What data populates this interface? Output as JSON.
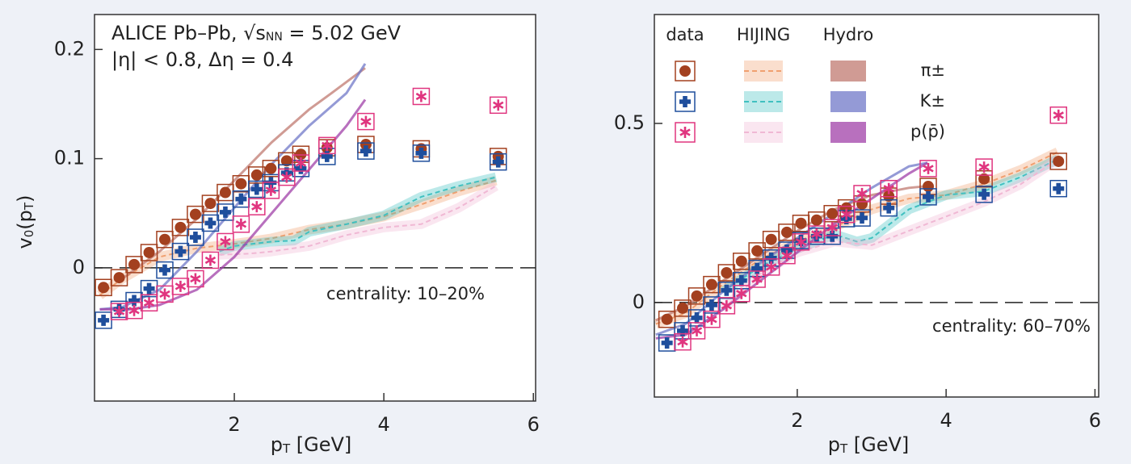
{
  "chart_data": [
    {
      "type": "scatter",
      "energy_label": [
        "ALICE Pb–Pb, √s",
        "NN",
        " = 5.02 GeV"
      ],
      "cuts_label": "|η| < 0.8, Δη = 0.4",
      "annotation": "centrality: 10–20%",
      "ylabel": [
        "v",
        "0",
        "(p",
        "T",
        ")"
      ],
      "xlabel": [
        "p",
        "T",
        " [GeV]"
      ],
      "xlim": [
        0.13,
        6.03
      ],
      "ylim": [
        -0.122,
        0.232
      ],
      "xticks": [
        2,
        4,
        6
      ],
      "yticks": [
        0,
        0.1,
        0.2
      ],
      "hline": 0,
      "series": [
        {
          "color": "#a3401f",
          "marker": "circle",
          "x": [
            0.25,
            0.46,
            0.66,
            0.86,
            1.07,
            1.28,
            1.48,
            1.68,
            1.88,
            2.09,
            2.3,
            2.49,
            2.7,
            2.89,
            3.24,
            3.76,
            4.5,
            5.53
          ],
          "values": [
            -0.018,
            -0.009,
            0.003,
            0.014,
            0.026,
            0.037,
            0.049,
            0.059,
            0.069,
            0.077,
            0.085,
            0.091,
            0.098,
            0.104,
            0.11,
            0.113,
            0.109,
            0.102
          ],
          "hijing": {
            "color": "#f0a070",
            "x": [
              0.2,
              0.5,
              1,
              1.5,
              2,
              2.5,
              3,
              3.5,
              4,
              4.5,
              5,
              5.5
            ],
            "values": [
              -0.025,
              -0.01,
              0.01,
              0.018,
              0.022,
              0.027,
              0.035,
              0.04,
              0.047,
              0.058,
              0.07,
              0.08
            ]
          },
          "hydro": {
            "color": "#c07a70",
            "x": [
              0.5,
              1,
              1.5,
              2,
              2.5,
              3,
              3.3,
              3.75
            ],
            "values": [
              -0.01,
              0.015,
              0.045,
              0.08,
              0.115,
              0.145,
              0.16,
              0.183
            ]
          }
        },
        {
          "color": "#1f4e9c",
          "marker": "plus",
          "x": [
            0.25,
            0.46,
            0.66,
            0.86,
            1.07,
            1.28,
            1.48,
            1.68,
            1.88,
            2.09,
            2.3,
            2.49,
            2.7,
            2.89,
            3.24,
            3.76,
            4.5,
            5.53
          ],
          "values": [
            -0.048,
            -0.038,
            -0.03,
            -0.019,
            -0.002,
            0.015,
            0.028,
            0.041,
            0.051,
            0.063,
            0.072,
            0.078,
            0.087,
            0.091,
            0.102,
            0.107,
            0.105,
            0.097
          ],
          "hijing": {
            "color": "#40c0c0",
            "x": [
              1.8,
              2,
              2.5,
              2.8,
              3,
              3.5,
              4,
              4.5,
              5,
              5.5
            ],
            "values": [
              0.015,
              0.02,
              0.024,
              0.025,
              0.033,
              0.04,
              0.048,
              0.065,
              0.075,
              0.083
            ]
          },
          "hydro": {
            "color": "#7078c8",
            "x": [
              0.2,
              0.5,
              1,
              1.5,
              2,
              2.5,
              3,
              3.5,
              3.75
            ],
            "values": [
              -0.038,
              -0.036,
              -0.02,
              0.015,
              0.055,
              0.095,
              0.13,
              0.16,
              0.187
            ]
          }
        },
        {
          "color": "#e0357f",
          "marker": "star",
          "x": [
            0.46,
            0.66,
            0.86,
            1.07,
            1.28,
            1.48,
            1.68,
            1.88,
            2.09,
            2.3,
            2.49,
            2.7,
            2.89,
            3.24,
            3.76,
            4.5,
            5.53
          ],
          "values": [
            -0.04,
            -0.039,
            -0.032,
            -0.024,
            -0.017,
            -0.01,
            0.007,
            0.024,
            0.04,
            0.056,
            0.071,
            0.083,
            0.096,
            0.112,
            0.134,
            0.157,
            0.149
          ],
          "hijing": {
            "color": "#f0b8d4",
            "x": [
              1.8,
              2.2,
              2.5,
              3,
              3.5,
              4,
              4.5,
              5,
              5.5
            ],
            "values": [
              0.012,
              0.013,
              0.015,
              0.02,
              0.03,
              0.037,
              0.04,
              0.055,
              0.075
            ]
          },
          "hydro": {
            "color": "#a040a8",
            "x": [
              0.2,
              0.6,
              1,
              1.5,
              2,
              2.5,
              3,
              3.5,
              3.75
            ],
            "values": [
              -0.038,
              -0.038,
              -0.034,
              -0.02,
              0.01,
              0.05,
              0.09,
              0.13,
              0.154
            ]
          }
        }
      ]
    },
    {
      "type": "scatter",
      "annotation": "centrality: 60–70%",
      "xlabel": [
        "p",
        "T",
        " [GeV]"
      ],
      "xlim": [
        0.08,
        6.05
      ],
      "ylim": [
        -0.264,
        0.804
      ],
      "xticks": [
        2,
        4,
        6
      ],
      "yticks": [
        0,
        0.5
      ],
      "hline": 0,
      "legend_columns": [
        "data",
        "HIJING",
        "Hydro"
      ],
      "series": [
        {
          "name": "π±",
          "color": "#a3401f",
          "marker": "circle",
          "x": [
            0.25,
            0.46,
            0.65,
            0.85,
            1.05,
            1.25,
            1.46,
            1.65,
            1.86,
            2.05,
            2.26,
            2.47,
            2.66,
            2.87,
            3.23,
            3.76,
            4.51,
            5.51
          ],
          "values": [
            -0.047,
            -0.016,
            0.018,
            0.05,
            0.083,
            0.115,
            0.144,
            0.176,
            0.196,
            0.221,
            0.23,
            0.248,
            0.264,
            0.275,
            0.297,
            0.324,
            0.345,
            0.394
          ],
          "hijing": {
            "color": "#f0a070",
            "x": [
              0.1,
              0.5,
              1,
              1.5,
              2,
              2.5,
              3,
              3.5,
              4,
              4.5,
              5,
              5.5
            ],
            "values": [
              -0.06,
              -0.03,
              0.05,
              0.12,
              0.17,
              0.21,
              0.26,
              0.29,
              0.3,
              0.33,
              0.37,
              0.42
            ]
          },
          "hydro": {
            "color": "#c07a70",
            "x": [
              0.1,
              0.5,
              1,
              1.5,
              2,
              2.5,
              3,
              3.5,
              3.75
            ],
            "values": [
              -0.05,
              -0.01,
              0.06,
              0.13,
              0.2,
              0.26,
              0.3,
              0.32,
              0.325
            ]
          }
        },
        {
          "name": "K±",
          "color": "#1f4e9c",
          "marker": "plus",
          "x": [
            0.25,
            0.46,
            0.65,
            0.85,
            1.05,
            1.25,
            1.46,
            1.65,
            1.86,
            2.05,
            2.26,
            2.47,
            2.66,
            2.87,
            3.23,
            3.76,
            4.51,
            5.51
          ],
          "values": [
            -0.113,
            -0.079,
            -0.043,
            -0.007,
            0.034,
            0.061,
            0.095,
            0.124,
            0.146,
            0.173,
            0.185,
            0.185,
            0.234,
            0.236,
            0.264,
            0.295,
            0.302,
            0.318
          ],
          "hijing": {
            "color": "#40c0c0",
            "x": [
              1,
              1.5,
              2,
              2.5,
              2.8,
              3,
              3.5,
              4,
              4.5,
              5,
              5.5
            ],
            "values": [
              0.03,
              0.1,
              0.15,
              0.19,
              0.17,
              0.18,
              0.26,
              0.3,
              0.31,
              0.35,
              0.4
            ]
          },
          "hydro": {
            "color": "#7078c8",
            "x": [
              0.1,
              0.5,
              1,
              1.5,
              2,
              2.5,
              3,
              3.5,
              3.75
            ],
            "values": [
              -0.09,
              -0.06,
              0.03,
              0.11,
              0.18,
              0.25,
              0.32,
              0.38,
              0.39
            ]
          }
        },
        {
          "name": "p(p̄)",
          "color": "#e0357f",
          "marker": "star",
          "x": [
            0.46,
            0.65,
            0.85,
            1.05,
            1.25,
            1.46,
            1.65,
            1.86,
            2.05,
            2.26,
            2.47,
            2.66,
            2.87,
            3.23,
            3.76,
            4.51,
            5.51
          ],
          "values": [
            -0.11,
            -0.079,
            -0.047,
            -0.009,
            0.025,
            0.065,
            0.099,
            0.131,
            0.169,
            0.191,
            0.209,
            0.246,
            0.304,
            0.318,
            0.374,
            0.378,
            0.523
          ],
          "hijing": {
            "color": "#f0b8d4",
            "x": [
              1,
              1.5,
              2,
              2.5,
              3,
              3.5,
              4,
              4.5,
              5,
              5.5
            ],
            "values": [
              -0.02,
              0.08,
              0.14,
              0.17,
              0.16,
              0.2,
              0.24,
              0.28,
              0.33,
              0.4
            ]
          },
          "hydro": {
            "color": "#a040a8",
            "x": [
              0.1,
              0.5,
              1,
              1.5,
              2,
              2.5,
              3,
              3.5,
              3.75
            ],
            "values": [
              -0.1,
              -0.09,
              -0.02,
              0.06,
              0.14,
              0.22,
              0.29,
              0.36,
              0.39
            ]
          }
        }
      ]
    }
  ]
}
